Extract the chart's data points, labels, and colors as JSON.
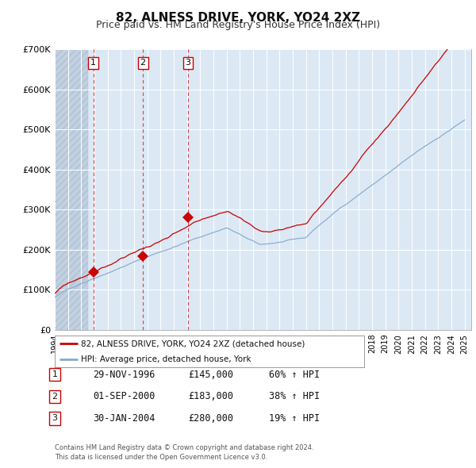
{
  "title": "82, ALNESS DRIVE, YORK, YO24 2XZ",
  "subtitle": "Price paid vs. HM Land Registry's House Price Index (HPI)",
  "title_fontsize": 11,
  "subtitle_fontsize": 9,
  "background_color": "#ffffff",
  "plot_bg_color": "#dce9f5",
  "red_line_color": "#cc0000",
  "blue_line_color": "#88aacc",
  "ylim": [
    0,
    700000
  ],
  "yticks": [
    0,
    100000,
    200000,
    300000,
    400000,
    500000,
    600000,
    700000
  ],
  "ytick_labels": [
    "£0",
    "£100K",
    "£200K",
    "£300K",
    "£400K",
    "£500K",
    "£600K",
    "£700K"
  ],
  "xlim_start": 1994.0,
  "xlim_end": 2025.5,
  "xticks": [
    1994,
    1995,
    1996,
    1997,
    1998,
    1999,
    2000,
    2001,
    2002,
    2003,
    2004,
    2005,
    2006,
    2007,
    2008,
    2009,
    2010,
    2011,
    2012,
    2013,
    2014,
    2015,
    2016,
    2017,
    2018,
    2019,
    2020,
    2021,
    2022,
    2023,
    2024,
    2025
  ],
  "sale_dates": [
    1996.91,
    2000.67,
    2004.08
  ],
  "sale_prices": [
    145000,
    183000,
    280000
  ],
  "sale_labels": [
    "1",
    "2",
    "3"
  ],
  "legend_red_label": "82, ALNESS DRIVE, YORK, YO24 2XZ (detached house)",
  "legend_blue_label": "HPI: Average price, detached house, York",
  "table_rows": [
    {
      "num": "1",
      "date": "29-NOV-1996",
      "price": "£145,000",
      "hpi": "60% ↑ HPI"
    },
    {
      "num": "2",
      "date": "01-SEP-2000",
      "price": "£183,000",
      "hpi": "38% ↑ HPI"
    },
    {
      "num": "3",
      "date": "30-JAN-2004",
      "price": "£280,000",
      "hpi": "19% ↑ HPI"
    }
  ],
  "footnote": "Contains HM Land Registry data © Crown copyright and database right 2024.\nThis data is licensed under the Open Government Licence v3.0.",
  "grid_color": "#ffffff"
}
